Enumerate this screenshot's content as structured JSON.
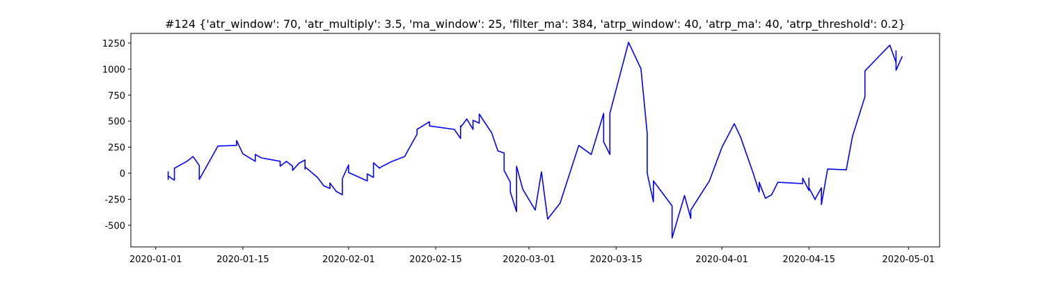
{
  "chart_data": {
    "type": "line",
    "title": "#124 {'atr_window': 70, 'atr_multiply': 3.5, 'ma_window': 25, 'filter_ma': 384, 'atrp_window': 40, 'atrp_ma': 40, 'atrp_threshold': 0.2}",
    "xlim": [
      "2019-12-28",
      "2020-05-06"
    ],
    "xticks": [
      "2020-01-01",
      "2020-01-15",
      "2020-02-01",
      "2020-02-15",
      "2020-03-01",
      "2020-03-15",
      "2020-04-01",
      "2020-04-15",
      "2020-05-01"
    ],
    "ylim": [
      -708,
      1343
    ],
    "yticks": [
      -500,
      -250,
      0,
      250,
      500,
      750,
      1000,
      1250
    ],
    "grid": false,
    "x": [
      "2020-01-03",
      "2020-01-03",
      "2020-01-03",
      "2020-01-03",
      "2020-01-03",
      "2020-01-04",
      "2020-01-04",
      "2020-01-04",
      "2020-01-04",
      "2020-01-06",
      "2020-01-07",
      "2020-01-08",
      "2020-01-08",
      "2020-01-11",
      "2020-01-14",
      "2020-01-14",
      "2020-01-15",
      "2020-01-17",
      "2020-01-17",
      "2020-01-18",
      "2020-01-21",
      "2020-01-21",
      "2020-01-22",
      "2020-01-23",
      "2020-01-23",
      "2020-01-24",
      "2020-01-25",
      "2020-01-25",
      "2020-01-25",
      "2020-01-27",
      "2020-01-28",
      "2020-01-29",
      "2020-01-29",
      "2020-01-30",
      "2020-01-31",
      "2020-01-31",
      "2020-01-31",
      "2020-02-01",
      "2020-02-01",
      "2020-02-04",
      "2020-02-04",
      "2020-02-05",
      "2020-02-05",
      "2020-02-06",
      "2020-02-06",
      "2020-02-08",
      "2020-02-10",
      "2020-02-12",
      "2020-02-12",
      "2020-02-14",
      "2020-02-14",
      "2020-02-18",
      "2020-02-19",
      "2020-02-19",
      "2020-02-19",
      "2020-02-20",
      "2020-02-21",
      "2020-02-21",
      "2020-02-22",
      "2020-02-22",
      "2020-02-24",
      "2020-02-25",
      "2020-02-26",
      "2020-02-26",
      "2020-02-27",
      "2020-02-27",
      "2020-02-28",
      "2020-02-28",
      "2020-02-29",
      "2020-03-02",
      "2020-03-03",
      "2020-03-04",
      "2020-03-06",
      "2020-03-09",
      "2020-03-11",
      "2020-03-13",
      "2020-03-13",
      "2020-03-14",
      "2020-03-14",
      "2020-03-17",
      "2020-03-19",
      "2020-03-20",
      "2020-03-20",
      "2020-03-21",
      "2020-03-21",
      "2020-03-24",
      "2020-03-24",
      "2020-03-26",
      "2020-03-27",
      "2020-03-27",
      "2020-03-30",
      "2020-04-01",
      "2020-04-03",
      "2020-04-04",
      "2020-04-06",
      "2020-04-07",
      "2020-04-07",
      "2020-04-08",
      "2020-04-09",
      "2020-04-10",
      "2020-04-14",
      "2020-04-14",
      "2020-04-15",
      "2020-04-15",
      "2020-04-15",
      "2020-04-16",
      "2020-04-16",
      "2020-04-17",
      "2020-04-17",
      "2020-04-18",
      "2020-04-21",
      "2020-04-22",
      "2020-04-24",
      "2020-04-24",
      "2020-04-28",
      "2020-04-29",
      "2020-04-29",
      "2020-04-29",
      "2020-04-30"
    ],
    "series": [
      {
        "color": "#0000ff",
        "values": [
          0,
          -20,
          13,
          -60,
          -27,
          -67,
          -40,
          -60,
          47,
          114,
          160,
          74,
          -60,
          261,
          267,
          314,
          187,
          114,
          180,
          147,
          114,
          67,
          114,
          67,
          27,
          94,
          127,
          40,
          60,
          -40,
          -120,
          -147,
          -94,
          -174,
          -207,
          -194,
          -53,
          80,
          7,
          -74,
          -7,
          -40,
          100,
          47,
          53,
          114,
          160,
          374,
          421,
          494,
          454,
          421,
          334,
          454,
          441,
          521,
          421,
          508,
          481,
          568,
          388,
          214,
          194,
          27,
          -87,
          -180,
          -368,
          67,
          -154,
          -354,
          13,
          -441,
          -287,
          267,
          180,
          575,
          301,
          180,
          575,
          1257,
          1003,
          381,
          0,
          -274,
          -74,
          -314,
          -622,
          -214,
          -434,
          -354,
          -74,
          247,
          475,
          348,
          7,
          -180,
          -87,
          -241,
          -207,
          -87,
          -100,
          -47,
          -167,
          -47,
          -140,
          -254,
          -247,
          -140,
          -301,
          40,
          33,
          354,
          735,
          983,
          1230,
          1063,
          1176,
          989,
          1123
        ]
      }
    ]
  }
}
